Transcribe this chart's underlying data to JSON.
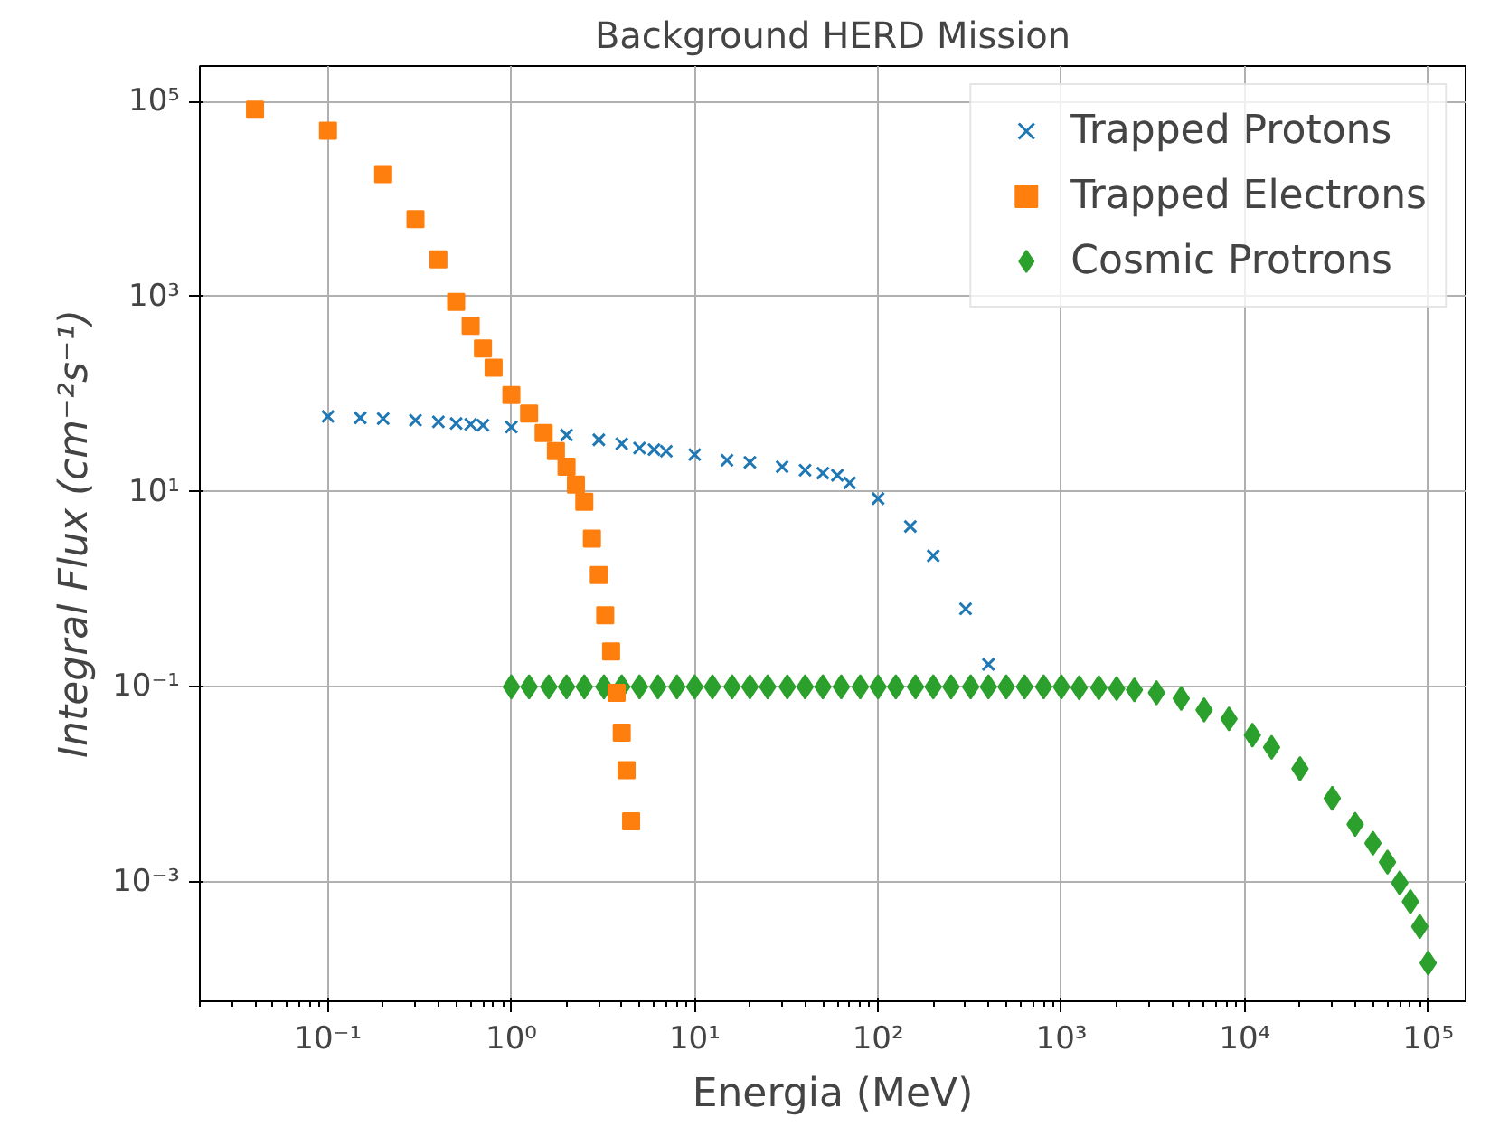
{
  "chart_data": {
    "type": "scatter",
    "title": "Background HERD Mission",
    "xlabel": "Energia (MeV)",
    "ylabel": "Integral Flux (cm⁻²s⁻¹)",
    "log": "xy",
    "grid": true,
    "legend": "top right",
    "xlim": [
      0.02,
      160000
    ],
    "ylim": [
      6e-05,
      230000
    ],
    "xticks": [
      {
        "value": 0.1,
        "label": "10⁻¹"
      },
      {
        "value": 1,
        "label": "10⁰"
      },
      {
        "value": 10,
        "label": "10¹"
      },
      {
        "value": 100,
        "label": "10²"
      },
      {
        "value": 1000,
        "label": "10³"
      },
      {
        "value": 10000,
        "label": "10⁴"
      },
      {
        "value": 100000,
        "label": "10⁵"
      }
    ],
    "yticks": [
      {
        "value": 0.001,
        "label": "10⁻³"
      },
      {
        "value": 0.1,
        "label": "10⁻¹"
      },
      {
        "value": 10,
        "label": "10¹"
      },
      {
        "value": 1000,
        "label": "10³"
      },
      {
        "value": 100000,
        "label": "10⁵"
      }
    ],
    "series": [
      {
        "name": "Trapped Protons",
        "color": "#1f77b4",
        "marker": "cross",
        "x": [
          0.1,
          0.15,
          0.2,
          0.3,
          0.4,
          0.5,
          0.6,
          0.7,
          1,
          2,
          3,
          4,
          5,
          6,
          7,
          10,
          15,
          20,
          30,
          40,
          50,
          60,
          70,
          100,
          150,
          200,
          300,
          400
        ],
        "values": [
          59,
          57,
          56,
          54,
          52,
          50,
          49,
          48,
          46,
          38,
          34,
          31,
          28,
          27,
          26,
          24,
          21,
          20,
          18,
          16.6,
          15.5,
          14.7,
          12.3,
          8.5,
          4.4,
          2.2,
          0.63,
          0.17
        ]
      },
      {
        "name": "Trapped Electrons",
        "color": "#ff7f0e",
        "marker": "square",
        "x": [
          0.04,
          0.1,
          0.2,
          0.3,
          0.4,
          0.5,
          0.6,
          0.7,
          0.8,
          1,
          1.25,
          1.5,
          1.75,
          2,
          2.25,
          2.5,
          2.75,
          3,
          3.25,
          3.5,
          3.75,
          4,
          4.25,
          4.5
        ],
        "values": [
          82000,
          50000,
          18000,
          6200,
          2400,
          880,
          500,
          294,
          187,
          98,
          63,
          40,
          26,
          18,
          11.8,
          7.9,
          3.3,
          1.4,
          0.54,
          0.23,
          0.087,
          0.034,
          0.014,
          0.0042
        ]
      },
      {
        "name": "Cosmic Protrons",
        "color": "#2ca02c",
        "marker": "diamond",
        "x": [
          1,
          1.25,
          1.6,
          2,
          2.5,
          3.2,
          4,
          5,
          6.3,
          8,
          10,
          12.5,
          16,
          20,
          25,
          32,
          40,
          50,
          63,
          80,
          100,
          125,
          160,
          200,
          250,
          320,
          400,
          500,
          630,
          800,
          1000,
          1250,
          1600,
          2000,
          2500,
          3300,
          4500,
          6000,
          8200,
          11000,
          14000,
          20000,
          30000,
          40000,
          50000,
          60000,
          70000,
          80000,
          90000,
          100000
        ],
        "values": [
          0.1,
          0.1,
          0.1,
          0.1,
          0.1,
          0.1,
          0.1,
          0.1,
          0.1,
          0.1,
          0.1,
          0.1,
          0.1,
          0.1,
          0.1,
          0.1,
          0.1,
          0.1,
          0.1,
          0.1,
          0.1,
          0.1,
          0.1,
          0.1,
          0.1,
          0.1,
          0.1,
          0.1,
          0.1,
          0.1,
          0.1,
          0.098,
          0.098,
          0.096,
          0.093,
          0.087,
          0.076,
          0.058,
          0.047,
          0.032,
          0.024,
          0.0145,
          0.0072,
          0.0039,
          0.0025,
          0.0016,
          0.00098,
          0.00063,
          0.00035,
          0.000148
        ]
      }
    ]
  }
}
